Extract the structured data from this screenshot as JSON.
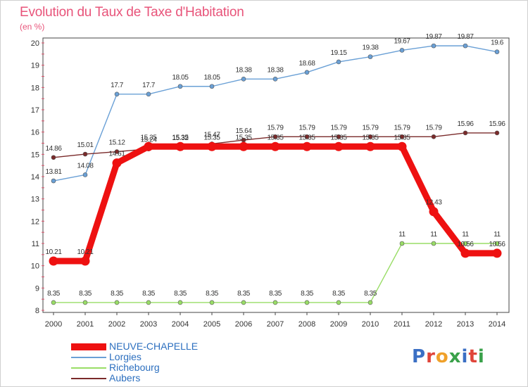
{
  "title": "Evolution du Taux de Taxe d'Habitation",
  "subtitle": "(en %)",
  "logo_text": "Proxiti",
  "chart_data": {
    "type": "line",
    "title": "Evolution du Taux de Taxe d'Habitation",
    "ylabel": "(en %)",
    "xlabel": "",
    "categories": [
      "2000",
      "2001",
      "2002",
      "2003",
      "2004",
      "2005",
      "2006",
      "2007",
      "2008",
      "2009",
      "2010",
      "2011",
      "2012",
      "2013",
      "2014"
    ],
    "ylim": [
      8,
      20
    ],
    "yticks": [
      8,
      9,
      10,
      11,
      12,
      13,
      14,
      15,
      16,
      17,
      18,
      19,
      20
    ],
    "grid": false,
    "legend_position": "bottom-left",
    "series": [
      {
        "name": "NEUVE-CHAPELLE",
        "color": "#ee1111",
        "values": [
          10.21,
          10.21,
          14.61,
          15.35,
          15.35,
          15.35,
          15.35,
          15.35,
          15.35,
          15.35,
          15.35,
          15.35,
          12.43,
          10.56,
          10.56
        ]
      },
      {
        "name": "Lorgies",
        "color": "#6aa0d6",
        "values": [
          13.81,
          14.08,
          17.7,
          17.7,
          18.05,
          18.05,
          18.38,
          18.38,
          18.68,
          19.15,
          19.38,
          19.67,
          19.87,
          19.87,
          19.6
        ]
      },
      {
        "name": "Richebourg",
        "color": "#99dd66",
        "values": [
          8.35,
          8.35,
          8.35,
          8.35,
          8.35,
          8.35,
          8.35,
          8.35,
          8.35,
          8.35,
          8.35,
          11,
          11,
          11,
          11
        ]
      },
      {
        "name": "Aubers",
        "color": "#7a2a2a",
        "values": [
          14.86,
          15.01,
          15.12,
          15.24,
          15.32,
          15.47,
          15.64,
          15.79,
          15.79,
          15.79,
          15.79,
          15.79,
          15.79,
          15.96,
          15.96
        ]
      }
    ]
  }
}
